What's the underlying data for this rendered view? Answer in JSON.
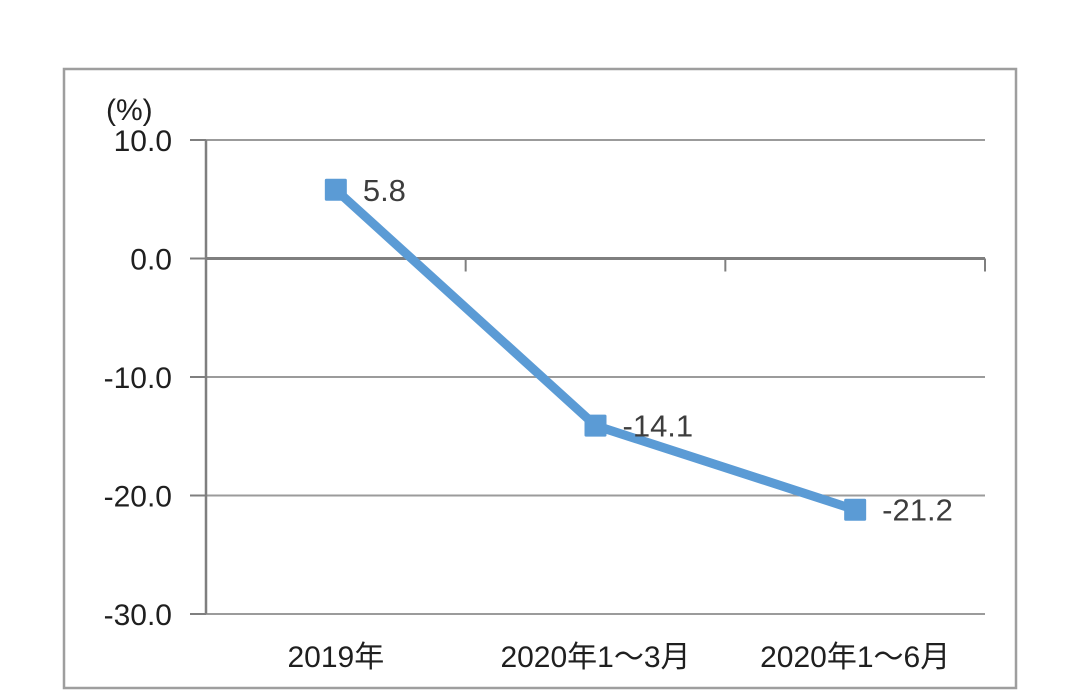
{
  "chart_data": {
    "type": "line",
    "title": "",
    "unit_label": "(%)",
    "categories": [
      "2019年",
      "2020年1～3月",
      "2020年1～6月"
    ],
    "values": [
      5.8,
      -14.1,
      -21.2
    ],
    "data_labels": [
      "5.8",
      "-14.1",
      "-21.2"
    ],
    "y_ticks": [
      10,
      0,
      -10,
      -20,
      -30
    ],
    "y_tick_labels": [
      "10.0",
      "0.0",
      "-10.0",
      "-20.0",
      "-30.0"
    ],
    "ylim": [
      -30,
      10
    ],
    "xlabel": "",
    "ylabel": "(%)",
    "grid": true,
    "legend": "none",
    "marker": "square",
    "series": [
      {
        "name": "series-1",
        "values": [
          5.8,
          -14.1,
          -21.2
        ],
        "color": "#5B9BD5"
      }
    ]
  },
  "colors": {
    "background": "#FFFFFF",
    "frame_border": "#9E9E9E",
    "gridline": "#9B9B9B",
    "axis": "#7F7F7F",
    "tick_label": "#1F1F1F",
    "data_label": "#3D3D3D",
    "line": "#5B9BD5",
    "marker_fill": "#5B9BD5"
  }
}
